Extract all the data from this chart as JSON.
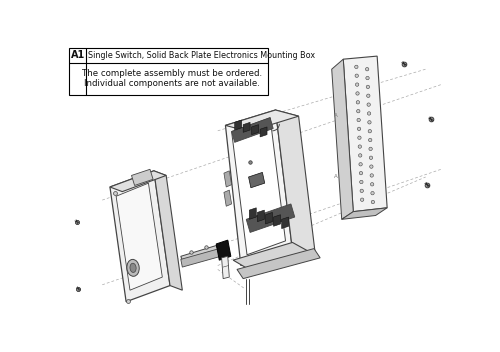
{
  "bg_color": "#ffffff",
  "border_color": "#000000",
  "line_color": "#444444",
  "dark_color": "#222222",
  "light_gray": "#e8e8e8",
  "mid_gray": "#cccccc",
  "dark_gray": "#888888",
  "box_label_id": "A1",
  "box_label_text": "Single Switch, Solid Back Plate Electronics Mounting Box",
  "box_note_line1": "The complete assembly must be ordered.",
  "box_note_line2": "Individual components are not available.",
  "figsize": [
    5.0,
    3.52
  ],
  "dpi": 100
}
